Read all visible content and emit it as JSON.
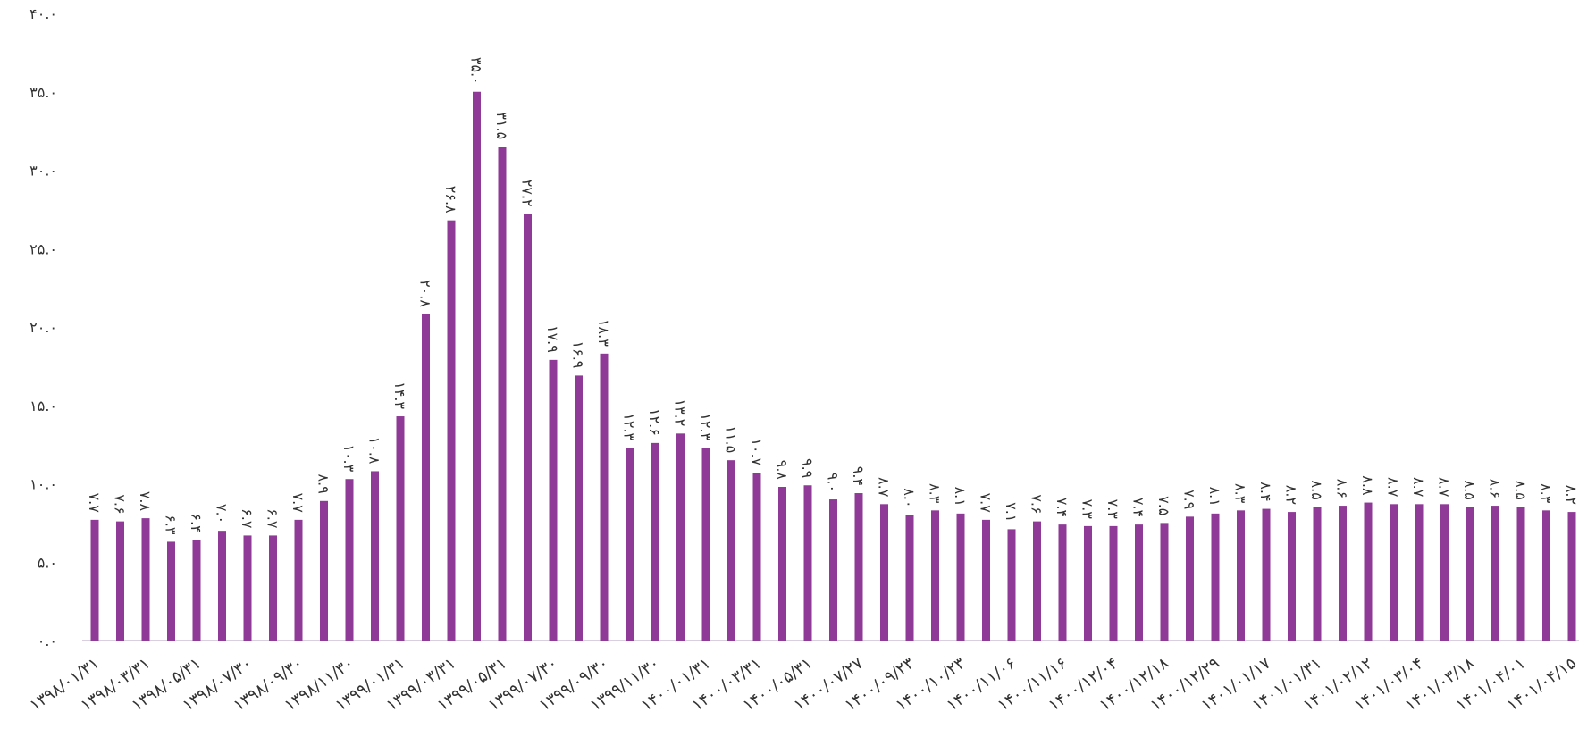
{
  "chart_data": {
    "type": "bar",
    "categories": [
      "۱۳۹۸/۰۱/۳۱",
      null,
      "۱۳۹۸/۰۳/۳۱",
      null,
      "۱۳۹۸/۰۵/۳۱",
      null,
      "۱۳۹۸/۰۷/۳۰",
      null,
      "۱۳۹۸/۰۹/۳۰",
      null,
      "۱۳۹۸/۱۱/۳۰",
      null,
      "۱۳۹۹/۰۱/۳۱",
      null,
      "۱۳۹۹/۰۳/۳۱",
      null,
      "۱۳۹۹/۰۵/۳۱",
      null,
      "۱۳۹۹/۰۷/۳۰",
      null,
      "۱۳۹۹/۰۹/۳۰",
      null,
      "۱۳۹۹/۱۱/۳۰",
      null,
      "۱۴۰۰/۰۱/۳۱",
      null,
      "۱۴۰۰/۰۳/۳۱",
      null,
      "۱۴۰۰/۰۵/۳۱",
      null,
      "۱۴۰۰/۰۷/۲۷",
      null,
      "۱۴۰۰/۰۹/۲۳",
      null,
      "۱۴۰۰/۱۰/۲۳",
      null,
      "۱۴۰۰/۱۱/۰۶",
      null,
      "۱۴۰۰/۱۱/۱۶",
      null,
      "۱۴۰۰/۱۲/۰۴",
      null,
      "۱۴۰۰/۱۲/۱۸",
      null,
      "۱۴۰۰/۱۲/۲۹",
      null,
      "۱۴۰۱/۰۱/۱۷",
      null,
      "۱۴۰۱/۰۱/۳۱",
      null,
      "۱۴۰۱/۰۲/۱۲",
      null,
      "۱۴۰۱/۰۳/۰۴",
      null,
      "۱۴۰۱/۰۳/۱۸",
      null,
      "۱۴۰۱/۰۴/۰۱",
      null,
      "۱۴۰۱/۰۴/۱۵"
    ],
    "values": [
      7.7,
      7.6,
      7.8,
      6.3,
      6.4,
      7.0,
      6.7,
      6.7,
      7.7,
      8.9,
      10.3,
      10.8,
      14.3,
      20.8,
      26.8,
      35.0,
      31.5,
      27.2,
      17.9,
      16.9,
      18.3,
      12.3,
      12.6,
      13.2,
      12.3,
      11.5,
      10.7,
      9.8,
      9.9,
      9.0,
      9.4,
      8.7,
      8.0,
      8.3,
      8.1,
      7.7,
      7.1,
      7.6,
      7.4,
      7.3,
      7.3,
      7.4,
      7.5,
      7.9,
      8.1,
      8.3,
      8.4,
      8.2,
      8.5,
      8.6,
      8.8,
      8.7,
      8.7,
      8.7,
      8.5,
      8.6,
      8.5,
      8.3,
      8.2
    ],
    "value_labels": [
      "۷.۷",
      "۷.۶",
      "۷.۸",
      "۶.۳",
      "۶.۴",
      "۷.۰",
      "۶.۷",
      "۶.۷",
      "۷.۷",
      "۸.۹",
      "۱۰.۳",
      "۱۰.۸",
      "۱۴.۳",
      "۲۰.۸",
      "۲۶.۸",
      "۳۵.۰",
      "۳۱.۵",
      "۲۷.۲",
      "۱۷.۹",
      "۱۶.۹",
      "۱۸.۳",
      "۱۲.۳",
      "۱۲.۶",
      "۱۳.۲",
      "۱۲.۳",
      "۱۱.۵",
      "۱۰.۷",
      "۹.۸",
      "۹.۹",
      "۹.۰",
      "۹.۴",
      "۸.۷",
      "۸.۰",
      "۸.۳",
      "۸.۱",
      "۷.۷",
      "۷.۱",
      "۷.۶",
      "۷.۴",
      "۷.۳",
      "۷.۳",
      "۷.۴",
      "۷.۵",
      "۷.۹",
      "۸.۱",
      "۸.۳",
      "۸.۴",
      "۸.۲",
      "۸.۵",
      "۸.۶",
      "۸.۸",
      "۸.۷",
      "۸.۷",
      "۸.۷",
      "۸.۵",
      "۸.۶",
      "۸.۵",
      "۸.۳",
      "۸.۲"
    ],
    "color": "#8e3a96",
    "ylim": [
      0,
      40
    ],
    "yticks": [
      {
        "value": 0,
        "label": "۰.۰"
      },
      {
        "value": 5,
        "label": "۵.۰"
      },
      {
        "value": 10,
        "label": "۱۰.۰"
      },
      {
        "value": 15,
        "label": "۱۵.۰"
      },
      {
        "value": 20,
        "label": "۲۰.۰"
      },
      {
        "value": 25,
        "label": "۲۵.۰"
      },
      {
        "value": 30,
        "label": "۳۰.۰"
      },
      {
        "value": 35,
        "label": "۳۵.۰"
      },
      {
        "value": 40,
        "label": "۴۰.۰"
      }
    ],
    "grid": false
  }
}
